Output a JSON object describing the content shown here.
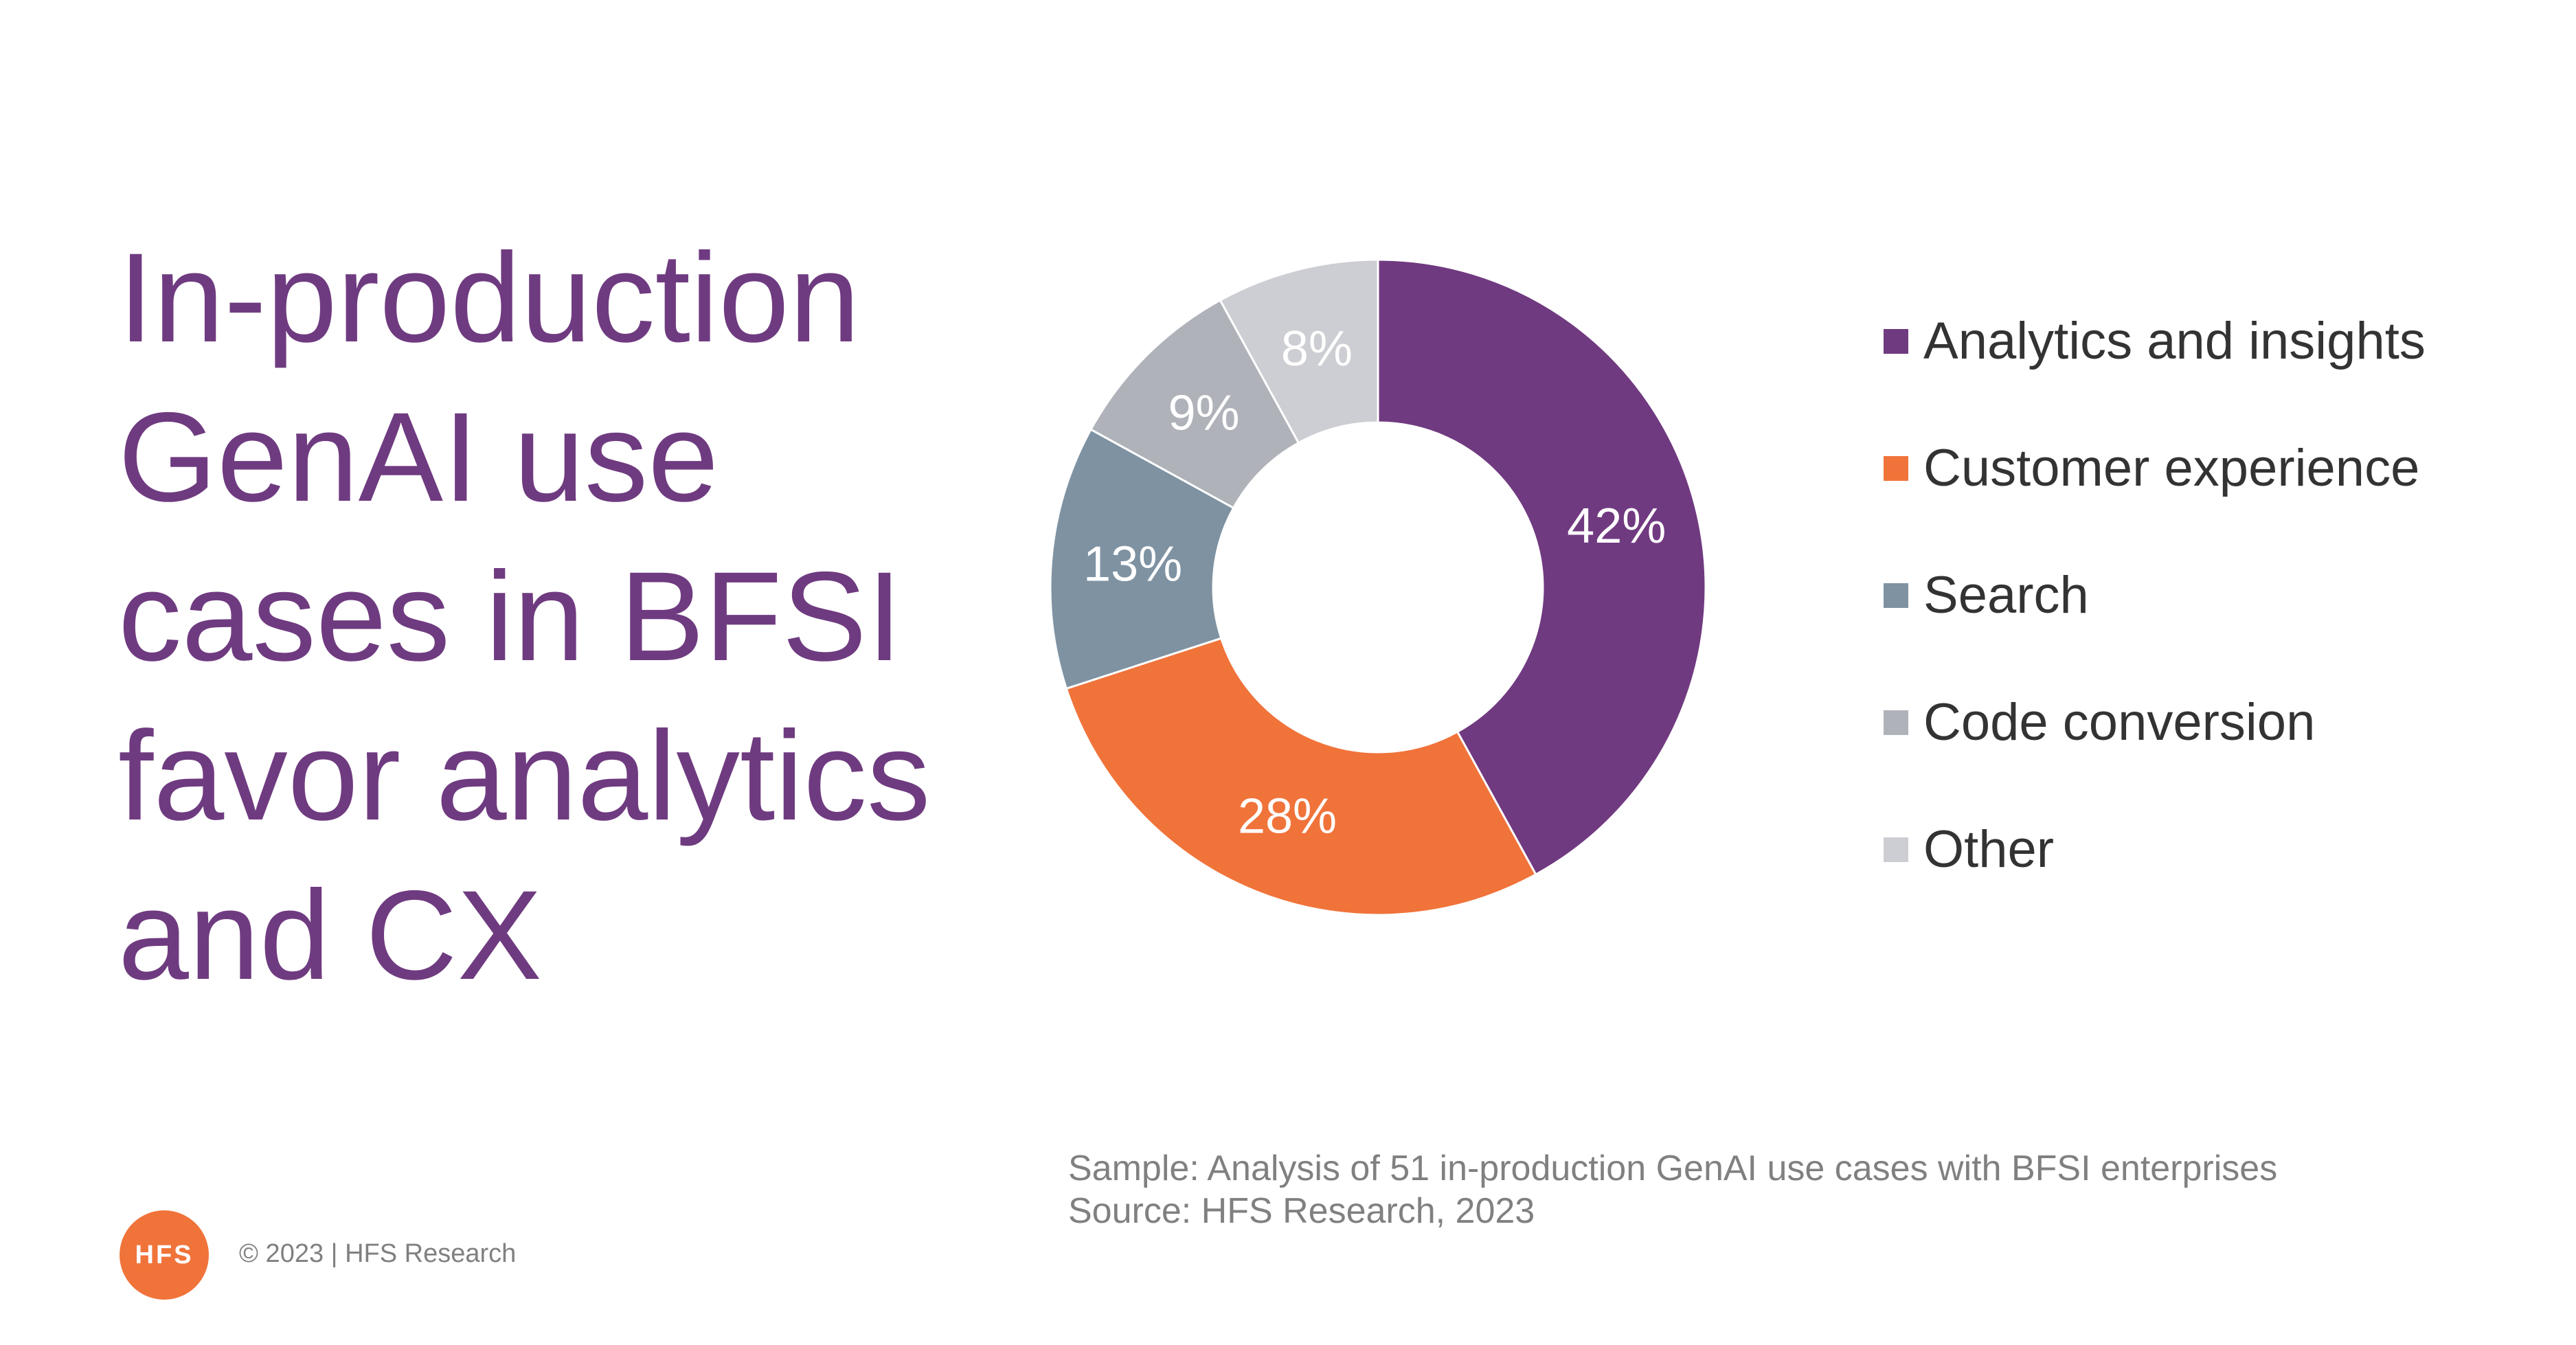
{
  "title_lines": [
    "In-production",
    "GenAI use",
    "cases in BFSI",
    "favor analytics",
    "and CX"
  ],
  "chart_data": {
    "type": "pie",
    "donut": true,
    "title": "",
    "legend_position": "right",
    "slices": [
      {
        "label": "Analytics and insights",
        "value": 42,
        "display": "42%",
        "color": "#703a80"
      },
      {
        "label": "Customer experience",
        "value": 28,
        "display": "28%",
        "color": "#f0733a"
      },
      {
        "label": "Search",
        "value": 13,
        "display": "13%",
        "color": "#7e92a2"
      },
      {
        "label": "Code conversion",
        "value": 9,
        "display": "9%",
        "color": "#afb2b9"
      },
      {
        "label": "Other",
        "value": 8,
        "display": "8%",
        "color": "#cdced3"
      }
    ]
  },
  "footnote": {
    "sample": "Sample: Analysis of 51 in-production GenAI use cases with BFSI enterprises",
    "source": "Source: HFS Research, 2023"
  },
  "footer": {
    "logo_text": "HFS",
    "copyright": "© 2023 | HFS Research"
  }
}
